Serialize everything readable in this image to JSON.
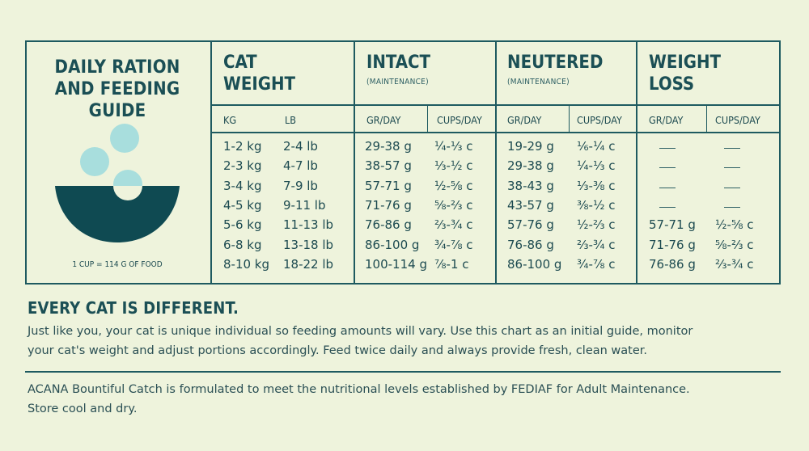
{
  "guide": {
    "title_line1": "DAILY RATION",
    "title_line2": "AND FEEDING GUIDE",
    "cup_note": "1 CUP = 114 G OF FOOD"
  },
  "columns": {
    "weight": {
      "line1": "CAT",
      "line2": "WEIGHT",
      "unit1": "KG",
      "unit2": "LB"
    },
    "intact": {
      "title": "INTACT",
      "sub": "(MAINTENANCE)",
      "unit1": "GR/DAY",
      "unit2": "CUPS/DAY"
    },
    "neutered": {
      "title": "NEUTERED",
      "sub": "(MAINTENANCE)",
      "unit1": "GR/DAY",
      "unit2": "CUPS/DAY"
    },
    "loss": {
      "line1": "WEIGHT",
      "line2": "LOSS",
      "unit1": "GR/DAY",
      "unit2": "CUPS/DAY"
    }
  },
  "rows": [
    {
      "kg": "1-2 kg",
      "lb": "2-4 lb",
      "intact_gr": "29-38 g",
      "intact_cups": "¼-⅓ c",
      "neut_gr": "19-29 g",
      "neut_cups": "⅙-¼ c",
      "loss_gr": "",
      "loss_cups": ""
    },
    {
      "kg": "2-3 kg",
      "lb": "4-7 lb",
      "intact_gr": "38-57 g",
      "intact_cups": "⅓-½ c",
      "neut_gr": "29-38 g",
      "neut_cups": "¼-⅓ c",
      "loss_gr": "",
      "loss_cups": ""
    },
    {
      "kg": "3-4 kg",
      "lb": "7-9 lb",
      "intact_gr": "57-71 g",
      "intact_cups": "½-⅝ c",
      "neut_gr": "38-43 g",
      "neut_cups": "⅓-⅜ c",
      "loss_gr": "",
      "loss_cups": ""
    },
    {
      "kg": "4-5 kg",
      "lb": "9-11 lb",
      "intact_gr": "71-76 g",
      "intact_cups": "⅝-⅔ c",
      "neut_gr": "43-57 g",
      "neut_cups": "⅜-½ c",
      "loss_gr": "",
      "loss_cups": ""
    },
    {
      "kg": "5-6 kg",
      "lb": "11-13 lb",
      "intact_gr": "76-86 g",
      "intact_cups": "⅔-¾ c",
      "neut_gr": "57-76 g",
      "neut_cups": "½-⅔ c",
      "loss_gr": "57-71 g",
      "loss_cups": "½-⅝ c"
    },
    {
      "kg": "6-8 kg",
      "lb": "13-18 lb",
      "intact_gr": "86-100 g",
      "intact_cups": "¾-⅞ c",
      "neut_gr": "76-86 g",
      "neut_cups": "⅔-¾ c",
      "loss_gr": "71-76 g",
      "loss_cups": "⅝-⅔ c"
    },
    {
      "kg": "8-10 kg",
      "lb": "18-22 lb",
      "intact_gr": "100-114 g",
      "intact_cups": "⅞-1 c",
      "neut_gr": "86-100 g",
      "neut_cups": "¾-⅞ c",
      "loss_gr": "76-86 g",
      "loss_cups": "⅔-¾ c"
    }
  ],
  "notes": {
    "heading": "EVERY CAT IS DIFFERENT.",
    "para1_line1": "Just like you, your cat is unique individual so feeding amounts will vary. Use this chart as an initial guide, monitor",
    "para1_line2": "your cat's weight and adjust portions accordingly. Feed twice daily and always provide fresh, clean water.",
    "para2_line1": "ACANA Bountiful Catch is formulated to meet the nutritional levels established by FEDIAF for Adult Maintenance.",
    "para2_line2": "Store cool and dry."
  },
  "colors": {
    "teal_dark": "#0f4a52",
    "mint": "#a8dedd",
    "background": "#eef3dc"
  }
}
